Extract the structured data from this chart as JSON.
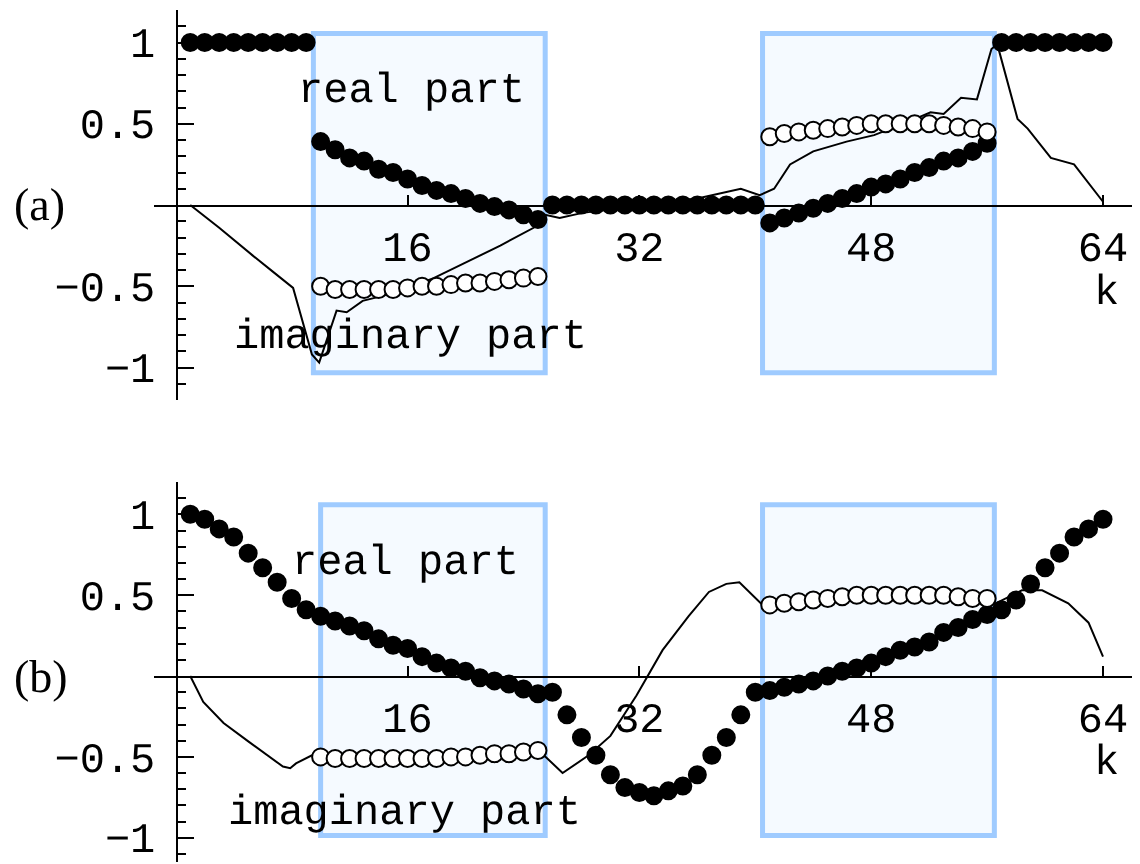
{
  "chart_data": [
    {
      "type": "scatter",
      "title": "(a)",
      "xlabel": "k",
      "xlim": [
        -1.5,
        66
      ],
      "xticks": [
        16,
        32,
        48,
        64
      ],
      "ylim": [
        -1.2,
        1.2
      ],
      "yticks": [
        {
          "value": -1.1,
          "label": null
        },
        -1,
        {
          "value": -0.9,
          "label": null
        },
        {
          "value": -0.8,
          "label": null
        },
        {
          "value": -0.7,
          "label": null
        },
        {
          "value": -0.6,
          "label": null
        },
        -0.5,
        {
          "value": -0.4,
          "label": null
        },
        {
          "value": -0.3,
          "label": null
        },
        {
          "value": -0.2,
          "label": null
        },
        {
          "value": -0.1,
          "label": null
        },
        {
          "value": 0.1,
          "label": null
        },
        {
          "value": 0.2,
          "label": null
        },
        {
          "value": 0.3,
          "label": null
        },
        {
          "value": 0.4,
          "label": null
        },
        0.5,
        {
          "value": 0.6,
          "label": null
        },
        {
          "value": 0.7,
          "label": null
        },
        {
          "value": 0.8,
          "label": null
        },
        {
          "value": 0.9,
          "label": null
        },
        1,
        {
          "value": 1.1,
          "label": null
        }
      ],
      "bands": [
        {
          "axis": "x",
          "from": 9.5,
          "to": 25.5,
          "color": "#9fcbff"
        },
        {
          "axis": "x",
          "from": 40.5,
          "to": 56.5,
          "color": "#9fcbff"
        }
      ],
      "x": [
        1,
        2,
        3,
        4,
        5,
        6,
        7,
        8,
        9,
        10,
        11,
        12,
        13,
        14,
        15,
        16,
        17,
        18,
        19,
        20,
        21,
        22,
        23,
        24,
        25,
        26,
        27,
        28,
        29,
        30,
        31,
        32,
        33,
        34,
        35,
        36,
        37,
        38,
        39,
        40,
        41,
        42,
        43,
        44,
        45,
        46,
        47,
        48,
        49,
        50,
        51,
        52,
        53,
        54,
        55,
        56,
        57,
        58,
        59,
        60,
        61,
        62,
        63,
        64
      ],
      "series": [
        {
          "type": "line",
          "color": "#000000",
          "marker": "none",
          "x": [
            1,
            3,
            5.3,
            6.7,
            8.1,
            9.4,
            9.9,
            11.1,
            11.8,
            12.9,
            13.8,
            15.4,
            17.8,
            20.1,
            22.4,
            24.7,
            25.5,
            26.5,
            28,
            32,
            36,
            39,
            40.3,
            41.3,
            42.4,
            44,
            46.3,
            48.2,
            50.5,
            52.1,
            53,
            54.2,
            55.3,
            56.3,
            56.7,
            58.1,
            58.8,
            60.4,
            62,
            64
          ],
          "values": [
            0,
            -0.14,
            -0.31,
            -0.41,
            -0.51,
            -0.92,
            -0.97,
            -0.65,
            -0.66,
            -0.59,
            -0.57,
            -0.53,
            -0.45,
            -0.35,
            -0.25,
            -0.14,
            -0.06,
            -0.08,
            -0.05,
            0,
            0.04,
            0.1,
            0.06,
            0.1,
            0.25,
            0.33,
            0.39,
            0.43,
            0.51,
            0.57,
            0.56,
            0.66,
            0.65,
            0.96,
            0.99,
            0.53,
            0.47,
            0.29,
            0.25,
            0.02
          ]
        },
        {
          "name": "real part",
          "type": "scatter",
          "color": "#000000",
          "marker": "circle",
          "values": [
            1,
            1,
            1,
            1,
            1,
            1,
            1,
            1,
            1,
            0.39,
            0.34,
            0.29,
            0.27,
            0.22,
            0.2,
            0.16,
            0.12,
            0.09,
            0.07,
            0.04,
            0.01,
            -0.01,
            -0.03,
            -0.06,
            -0.09,
            0,
            0,
            0,
            0,
            0,
            0,
            0,
            0,
            0,
            0,
            0,
            0,
            0,
            0,
            0,
            -0.11,
            -0.08,
            -0.05,
            -0.02,
            0.01,
            0.04,
            0.07,
            0.11,
            0.13,
            0.16,
            0.2,
            0.23,
            0.27,
            0.29,
            0.33,
            0.38,
            1,
            1,
            1,
            1,
            1,
            1,
            1,
            1
          ]
        },
        {
          "name": "imaginary part",
          "type": "scatter",
          "color": "#ffffff",
          "marker": "circle",
          "values": [
            null,
            null,
            null,
            null,
            null,
            null,
            null,
            null,
            null,
            -0.5,
            -0.52,
            -0.52,
            -0.52,
            -0.52,
            -0.52,
            -0.51,
            -0.5,
            -0.5,
            -0.49,
            -0.48,
            -0.48,
            -0.47,
            -0.46,
            -0.45,
            -0.44,
            null,
            null,
            null,
            null,
            null,
            null,
            null,
            null,
            null,
            null,
            null,
            null,
            null,
            null,
            null,
            0.42,
            0.44,
            0.45,
            0.46,
            0.47,
            0.48,
            0.49,
            0.5,
            0.5,
            0.5,
            0.5,
            0.5,
            0.49,
            0.48,
            0.47,
            0.45,
            null,
            null,
            null,
            null,
            null,
            null,
            null,
            null
          ]
        }
      ]
    },
    {
      "type": "scatter",
      "title": "(b)",
      "xlabel": "k",
      "xlim": [
        -1.5,
        66
      ],
      "xticks": [
        16,
        32,
        48,
        64
      ],
      "ylim": [
        -1.15,
        1.2
      ],
      "yticks": [
        {
          "value": -1.1,
          "label": null
        },
        -1,
        {
          "value": -0.9,
          "label": null
        },
        {
          "value": -0.8,
          "label": null
        },
        {
          "value": -0.7,
          "label": null
        },
        {
          "value": -0.6,
          "label": null
        },
        -0.5,
        {
          "value": -0.4,
          "label": null
        },
        {
          "value": -0.3,
          "label": null
        },
        {
          "value": -0.2,
          "label": null
        },
        {
          "value": -0.1,
          "label": null
        },
        {
          "value": 0.1,
          "label": null
        },
        {
          "value": 0.2,
          "label": null
        },
        {
          "value": 0.3,
          "label": null
        },
        {
          "value": 0.4,
          "label": null
        },
        0.5,
        {
          "value": 0.6,
          "label": null
        },
        {
          "value": 0.7,
          "label": null
        },
        {
          "value": 0.8,
          "label": null
        },
        {
          "value": 0.9,
          "label": null
        },
        1,
        {
          "value": 1.1,
          "label": null
        }
      ],
      "bands": [
        {
          "axis": "x",
          "from": 10,
          "to": 25.5,
          "color": "#9fcbff"
        },
        {
          "axis": "x",
          "from": 40.5,
          "to": 56.5,
          "color": "#9fcbff"
        }
      ],
      "x": [
        1,
        2,
        3,
        4,
        5,
        6,
        7,
        8,
        9,
        10,
        11,
        12,
        13,
        14,
        15,
        16,
        17,
        18,
        19,
        20,
        21,
        22,
        23,
        24,
        25,
        26,
        27,
        28,
        29,
        30,
        31,
        32,
        33,
        34,
        35,
        36,
        37,
        38,
        39,
        40,
        41,
        42,
        43,
        44,
        45,
        46,
        47,
        48,
        49,
        50,
        51,
        52,
        53,
        54,
        55,
        56,
        57,
        58,
        59,
        60,
        61,
        62,
        63,
        64
      ],
      "series": [
        {
          "type": "line",
          "color": "#000000",
          "marker": "none",
          "x": [
            1,
            1.9,
            3.3,
            5.1,
            7.4,
            7.9,
            8.3,
            9.4,
            13,
            17,
            21,
            25.3,
            26.7,
            28.5,
            30,
            31.8,
            33.6,
            35.4,
            36.8,
            38,
            38.9,
            40.5,
            44,
            48,
            52,
            56.6,
            58.4,
            59.8,
            61.6,
            63,
            64
          ],
          "values": [
            0,
            -0.16,
            -0.29,
            -0.41,
            -0.56,
            -0.57,
            -0.54,
            -0.49,
            -0.5,
            -0.5,
            -0.49,
            -0.48,
            -0.6,
            -0.49,
            -0.37,
            -0.12,
            0.16,
            0.37,
            0.52,
            0.57,
            0.58,
            0.44,
            0.47,
            0.5,
            0.5,
            0.45,
            0.53,
            0.53,
            0.45,
            0.33,
            0.12
          ]
        },
        {
          "name": "real part",
          "type": "scatter",
          "color": "#000000",
          "marker": "circle",
          "values": [
            1,
            0.97,
            0.91,
            0.86,
            0.76,
            0.67,
            0.58,
            0.48,
            0.41,
            0.37,
            0.34,
            0.31,
            0.28,
            0.23,
            0.19,
            0.17,
            0.12,
            0.08,
            0.05,
            0.03,
            -0.01,
            -0.03,
            -0.05,
            -0.08,
            -0.11,
            -0.1,
            -0.24,
            -0.38,
            -0.49,
            -0.61,
            -0.69,
            -0.72,
            -0.74,
            -0.71,
            -0.68,
            -0.61,
            -0.49,
            -0.38,
            -0.24,
            -0.1,
            -0.09,
            -0.07,
            -0.05,
            -0.03,
            0,
            0.03,
            0.05,
            0.08,
            0.12,
            0.16,
            0.18,
            0.21,
            0.27,
            0.3,
            0.35,
            0.38,
            0.41,
            0.47,
            0.57,
            0.67,
            0.76,
            0.86,
            0.91,
            0.97
          ]
        },
        {
          "name": "imaginary part",
          "type": "scatter",
          "color": "#ffffff",
          "marker": "circle",
          "values": [
            null,
            null,
            null,
            null,
            null,
            null,
            null,
            null,
            null,
            -0.5,
            -0.51,
            -0.51,
            -0.51,
            -0.51,
            -0.51,
            -0.51,
            -0.51,
            -0.51,
            -0.5,
            -0.5,
            -0.49,
            -0.48,
            -0.48,
            -0.47,
            -0.46,
            null,
            null,
            null,
            null,
            null,
            null,
            null,
            null,
            null,
            null,
            null,
            null,
            null,
            null,
            null,
            0.44,
            0.45,
            0.46,
            0.47,
            0.48,
            0.49,
            0.5,
            0.5,
            0.5,
            0.5,
            0.5,
            0.5,
            0.5,
            0.49,
            0.48,
            0.48,
            null,
            null,
            null,
            null,
            null,
            null,
            null,
            null
          ]
        }
      ]
    }
  ]
}
